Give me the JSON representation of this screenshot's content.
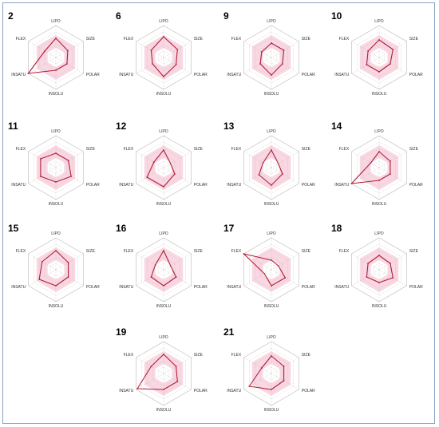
{
  "figure": {
    "axes": [
      "LIPO",
      "SIZE",
      "POLAR",
      "INSOLU",
      "INSATU",
      "FLEX"
    ],
    "rmax": 1.0,
    "optimal_range": {
      "inner": 0.3,
      "outer": 0.7
    },
    "colors": {
      "optimal_fill": "#f9d7e3",
      "grid": "#b8b8b8",
      "series": "#b01e36",
      "frame": "#8a9fc6"
    }
  },
  "chart_data": [
    {
      "type": "radar",
      "compound": "2",
      "axes": [
        "LIPO",
        "SIZE",
        "POLAR",
        "INSOLU",
        "INSATU",
        "FLEX"
      ],
      "values": [
        0.6,
        0.43,
        0.4,
        0.4,
        1.0,
        0.4
      ]
    },
    {
      "type": "radar",
      "compound": "6",
      "axes": [
        "LIPO",
        "SIZE",
        "POLAR",
        "INSOLU",
        "INSATU",
        "FLEX"
      ],
      "values": [
        0.65,
        0.5,
        0.45,
        0.6,
        0.4,
        0.45
      ]
    },
    {
      "type": "radar",
      "compound": "9",
      "axes": [
        "LIPO",
        "SIZE",
        "POLAR",
        "INSOLU",
        "INSATU",
        "FLEX"
      ],
      "values": [
        0.45,
        0.45,
        0.4,
        0.55,
        0.4,
        0.35
      ]
    },
    {
      "type": "radar",
      "compound": "10",
      "axes": [
        "LIPO",
        "SIZE",
        "POLAR",
        "INSOLU",
        "INSATU",
        "FLEX"
      ],
      "values": [
        0.55,
        0.5,
        0.4,
        0.45,
        0.45,
        0.4
      ]
    },
    {
      "type": "radar",
      "compound": "11",
      "axes": [
        "LIPO",
        "SIZE",
        "POLAR",
        "INSOLU",
        "INSATU",
        "FLEX"
      ],
      "values": [
        0.45,
        0.45,
        0.55,
        0.45,
        0.55,
        0.55
      ]
    },
    {
      "type": "radar",
      "compound": "12",
      "axes": [
        "LIPO",
        "SIZE",
        "POLAR",
        "INSOLU",
        "INSATU",
        "FLEX"
      ],
      "values": [
        0.55,
        0.25,
        0.4,
        0.6,
        0.6,
        0.35
      ]
    },
    {
      "type": "radar",
      "compound": "13",
      "axes": [
        "LIPO",
        "SIZE",
        "POLAR",
        "INSOLU",
        "INSATU",
        "FLEX"
      ],
      "values": [
        0.55,
        0.25,
        0.4,
        0.55,
        0.45,
        0.3
      ]
    },
    {
      "type": "radar",
      "compound": "14",
      "axes": [
        "LIPO",
        "SIZE",
        "POLAR",
        "INSOLU",
        "INSATU",
        "FLEX"
      ],
      "values": [
        0.5,
        0.4,
        0.4,
        0.4,
        1.0,
        0.3
      ]
    },
    {
      "type": "radar",
      "compound": "15",
      "axes": [
        "LIPO",
        "SIZE",
        "POLAR",
        "INSOLU",
        "INSATU",
        "FLEX"
      ],
      "values": [
        0.6,
        0.45,
        0.45,
        0.5,
        0.6,
        0.5
      ]
    },
    {
      "type": "radar",
      "compound": "16",
      "axes": [
        "LIPO",
        "SIZE",
        "POLAR",
        "INSOLU",
        "INSATU",
        "FLEX"
      ],
      "values": [
        0.6,
        0.25,
        0.45,
        0.5,
        0.45,
        0.3
      ]
    },
    {
      "type": "radar",
      "compound": "17",
      "axes": [
        "LIPO",
        "SIZE",
        "POLAR",
        "INSOLU",
        "INSATU",
        "FLEX"
      ],
      "values": [
        0.3,
        0.25,
        0.5,
        0.5,
        0.25,
        1.0
      ]
    },
    {
      "type": "radar",
      "compound": "18",
      "axes": [
        "LIPO",
        "SIZE",
        "POLAR",
        "INSOLU",
        "INSATU",
        "FLEX"
      ],
      "values": [
        0.45,
        0.4,
        0.5,
        0.4,
        0.45,
        0.4
      ]
    },
    {
      "type": "radar",
      "compound": "19",
      "axes": [
        "LIPO",
        "SIZE",
        "POLAR",
        "INSOLU",
        "INSATU",
        "FLEX"
      ],
      "values": [
        0.6,
        0.45,
        0.5,
        0.5,
        0.95,
        0.45
      ]
    },
    {
      "type": "radar",
      "compound": "21",
      "axes": [
        "LIPO",
        "SIZE",
        "POLAR",
        "INSOLU",
        "INSATU",
        "FLEX"
      ],
      "values": [
        0.55,
        0.45,
        0.45,
        0.5,
        0.8,
        0.35
      ]
    }
  ]
}
